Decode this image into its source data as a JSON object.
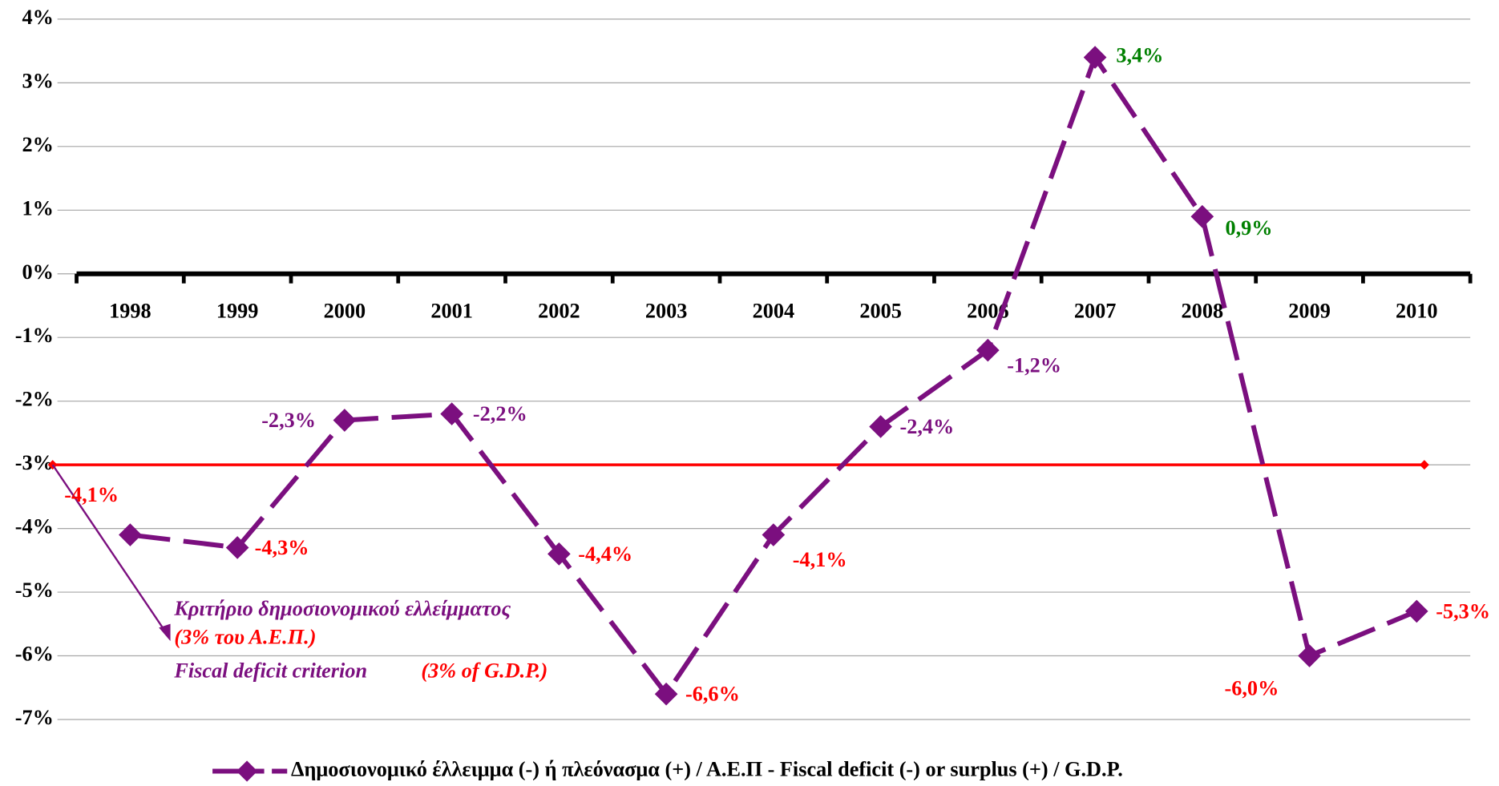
{
  "chart_data": {
    "type": "line",
    "categories": [
      "1998",
      "1999",
      "2000",
      "2001",
      "2002",
      "2003",
      "2004",
      "2005",
      "2006",
      "2007",
      "2008",
      "2009",
      "2010"
    ],
    "series": [
      {
        "name": "Δημοσιονομικό έλλειμμα (-) ή πλεόνασμα (+) / Α.Ε.Π - Fiscal deficit (-) or surplus (+) / G.D.P.",
        "color": "#7b0f7f",
        "values": [
          -4.1,
          -4.3,
          -2.3,
          -2.2,
          -4.4,
          -6.6,
          -4.1,
          -2.4,
          -1.2,
          3.4,
          0.9,
          -6.0,
          -5.3
        ],
        "value_labels": [
          "-4,1%",
          "-4,3%",
          "-2,3%",
          "-2,2%",
          "-4,4%",
          "-6,6%",
          "-4,1%",
          "-2,4%",
          "-1,2%",
          "3,4%",
          "0,9%",
          "-6,0%",
          "-5,3%"
        ],
        "value_label_colors": [
          "#ff0000",
          "#ff0000",
          "#7b0f7f",
          "#7b0f7f",
          "#ff0000",
          "#ff0000",
          "#ff0000",
          "#7b0f7f",
          "#7b0f7f",
          "#008000",
          "#008000",
          "#ff0000",
          "#ff0000"
        ]
      }
    ],
    "ylim": [
      -7,
      4
    ],
    "yticks": [
      {
        "value": -7,
        "label": "-7%"
      },
      {
        "value": -6,
        "label": "-6%"
      },
      {
        "value": -5,
        "label": "-5%"
      },
      {
        "value": -4,
        "label": "-4%"
      },
      {
        "value": -3,
        "label": "-3%"
      },
      {
        "value": -2,
        "label": "-2%"
      },
      {
        "value": -1,
        "label": "-1%"
      },
      {
        "value": 0,
        "label": "0%"
      },
      {
        "value": 1,
        "label": "1%"
      },
      {
        "value": 2,
        "label": "2%"
      },
      {
        "value": 3,
        "label": "3%"
      },
      {
        "value": 4,
        "label": "4%"
      }
    ],
    "grid": true,
    "reference_line": {
      "value": -3,
      "color": "#ff0000"
    },
    "annotations": [
      {
        "text": "Κριτήριο δημοσιονομικού ελλείμματος",
        "color": "#7b0f7f"
      },
      {
        "text": "(3% του Α.Ε.Π.)",
        "color": "#ff0000"
      },
      {
        "text": "Fiscal deficit criterion",
        "color": "#7b0f7f"
      },
      {
        "text": "(3% of G.D.P.)",
        "color": "#ff0000"
      }
    ],
    "legend": "bottom"
  }
}
